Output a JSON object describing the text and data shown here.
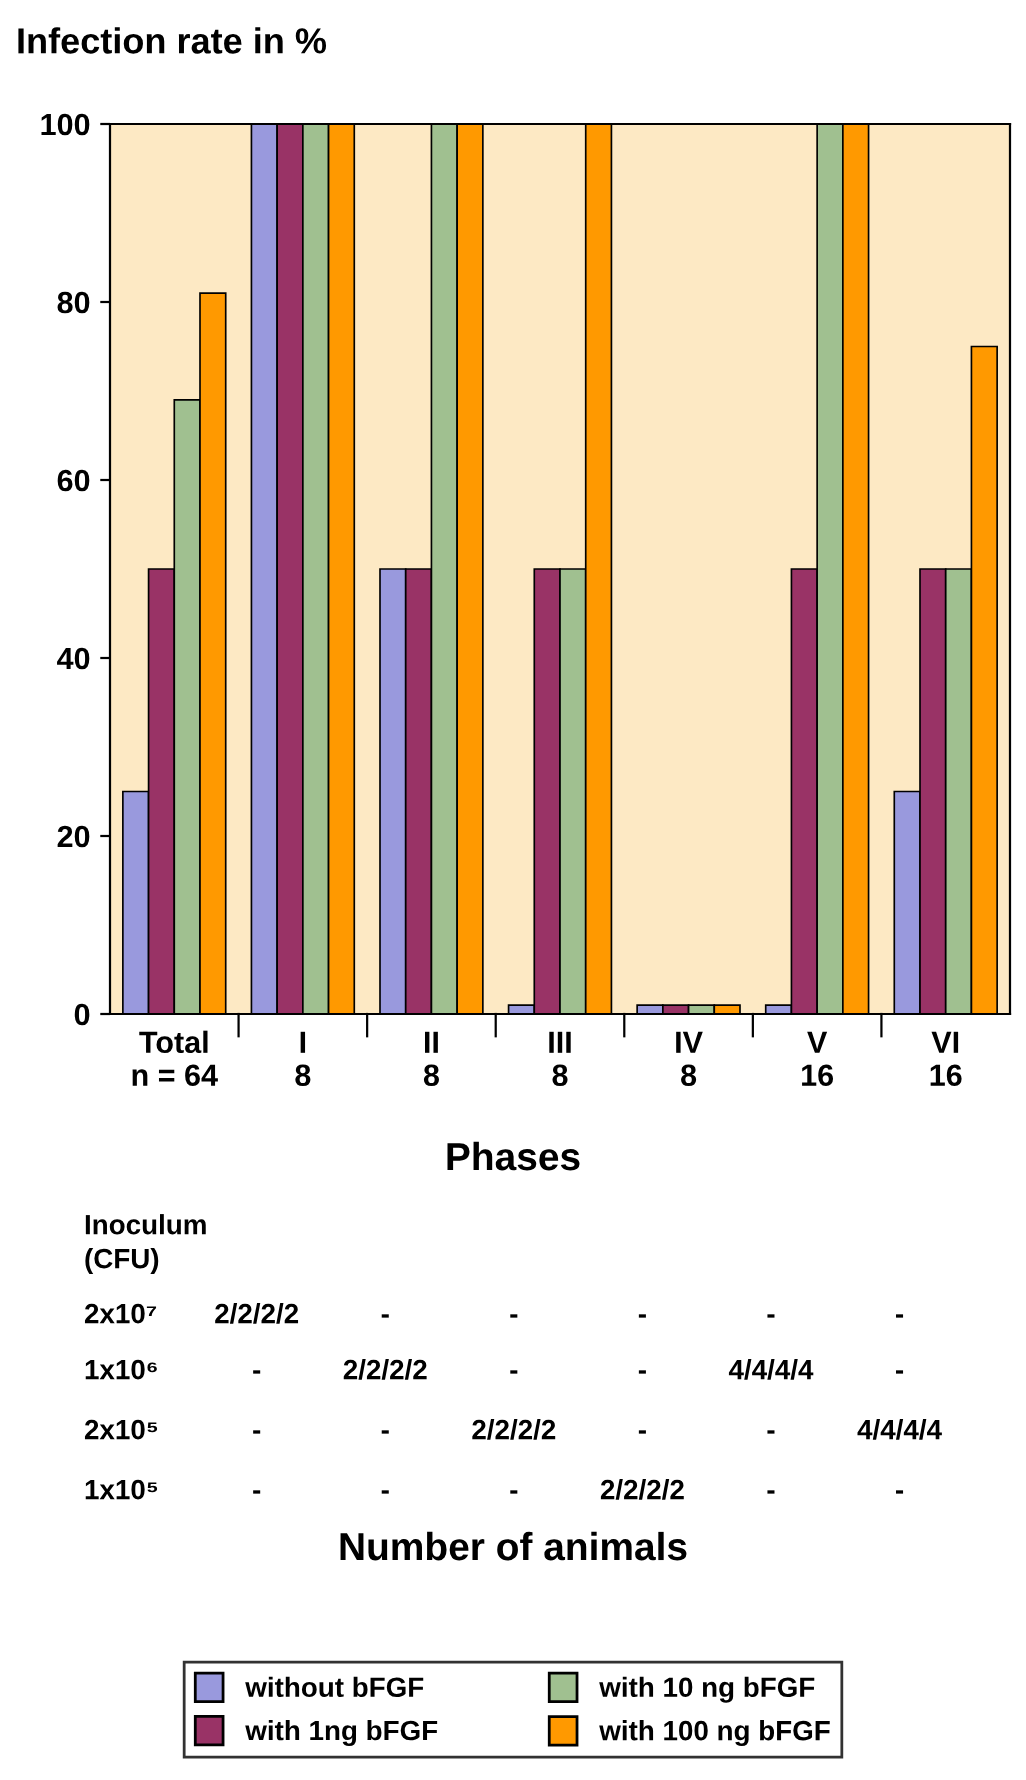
{
  "chart_data": {
    "type": "bar",
    "ylabel": "Infection rate in %",
    "xlabel": "Phases",
    "categories": [
      "Total\nn = 64",
      "I\n8",
      "II\n8",
      "III\n8",
      "IV\n8",
      "V\n16",
      "VI\n16"
    ],
    "series": [
      {
        "name": "without bFGF",
        "color": "#9999dd",
        "values": [
          25,
          100,
          50,
          1,
          1,
          1,
          25
        ]
      },
      {
        "name": "with 1ng bFGF",
        "color": "#993366",
        "values": [
          50,
          100,
          50,
          50,
          1,
          50,
          50
        ]
      },
      {
        "name": "with 10 ng bFGF",
        "color": "#a0c090",
        "values": [
          69,
          100,
          100,
          50,
          1,
          100,
          50
        ]
      },
      {
        "name": "with 100 ng bFGF",
        "color": "#ff9900",
        "values": [
          81,
          100,
          100,
          100,
          1,
          100,
          75
        ]
      }
    ],
    "ylim": [
      0,
      100
    ],
    "yticks": [
      0,
      20,
      40,
      60,
      80,
      100
    ],
    "grid": false,
    "legend": "bottom",
    "annotations": [
      "Inoculum\n(CFU)",
      "2x10⁷",
      "2/2/2/2",
      "-",
      "-",
      "-",
      "-",
      "-",
      "1x10⁶",
      "-",
      "2/2/2/2",
      "-",
      "-",
      "4/4/4/4",
      "-",
      "2x10⁵",
      "-",
      "-",
      "2/2/2/2",
      "-",
      "-",
      "4/4/4/4",
      "1x10⁵",
      "-",
      "-",
      "-",
      "2/2/2/2",
      "-",
      "-",
      "Number of animals"
    ]
  }
}
